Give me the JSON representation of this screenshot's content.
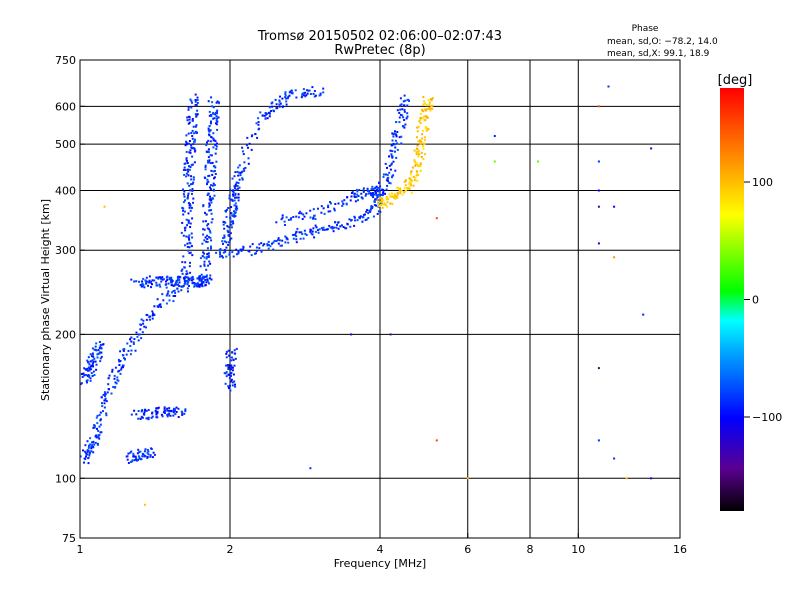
{
  "header": {
    "title_line1": "Tromsø 20150502 02:06:00–02:07:43",
    "title_line2": "RwPretec (8p)"
  },
  "phase_box": {
    "title": "Phase",
    "line_o": "mean, sd,O: −78.2, 14.0",
    "line_x": "mean, sd,X:  99.1, 18.9"
  },
  "colorbar": {
    "unit": "[deg]",
    "ticks": [
      "100",
      "0",
      "−100"
    ],
    "tick_values": [
      100,
      0,
      -100
    ],
    "range": [
      -180,
      180
    ]
  },
  "chart_data": {
    "type": "scatter",
    "title": "Tromsø 20150502 02:06:00–02:07:43",
    "subtitle": "RwPretec (8p)",
    "xlabel": "Frequency [MHz]",
    "ylabel": "Stationary phase Virtual Height [km]",
    "x_scale": "log",
    "y_scale": "log",
    "xlim": [
      1,
      16
    ],
    "ylim": [
      75,
      750
    ],
    "x_ticks": [
      1,
      2,
      4,
      6,
      8,
      10,
      16
    ],
    "x_tick_labels": [
      "1",
      "2",
      "4",
      "6",
      "8",
      "10",
      "16"
    ],
    "x_grid": [
      2,
      4,
      6,
      8,
      10
    ],
    "y_ticks": [
      75,
      100,
      200,
      300,
      400,
      500,
      600,
      750
    ],
    "y_tick_labels": [
      "75",
      "100",
      "200",
      "300",
      "400",
      "500",
      "600",
      "750"
    ],
    "y_grid": [
      100,
      200,
      300,
      400,
      500,
      600
    ],
    "grid": true,
    "color_encoding": "phase [deg]",
    "traces": [
      {
        "phase": -85,
        "points": [
          [
            1.3,
            255
          ],
          [
            1.4,
            258
          ],
          [
            1.5,
            258
          ],
          [
            1.6,
            258
          ],
          [
            1.7,
            258
          ],
          [
            1.75,
            258
          ],
          [
            1.8,
            258
          ]
        ]
      },
      {
        "phase": -85,
        "points": [
          [
            1.62,
            250
          ],
          [
            1.64,
            300
          ],
          [
            1.64,
            350
          ],
          [
            1.65,
            400
          ],
          [
            1.66,
            450
          ],
          [
            1.67,
            500
          ],
          [
            1.68,
            560
          ],
          [
            1.69,
            630
          ]
        ]
      },
      {
        "phase": -85,
        "points": [
          [
            1.78,
            260
          ],
          [
            1.8,
            300
          ],
          [
            1.8,
            350
          ],
          [
            1.82,
            400
          ],
          [
            1.83,
            450
          ],
          [
            1.84,
            500
          ],
          [
            1.85,
            560
          ],
          [
            1.86,
            620
          ]
        ]
      },
      {
        "phase": -85,
        "points": [
          [
            1.95,
            300
          ],
          [
            1.98,
            340
          ],
          [
            2.02,
            370
          ],
          [
            2.05,
            400
          ],
          [
            2.1,
            440
          ],
          [
            2.3,
            570
          ],
          [
            2.5,
            610
          ],
          [
            2.7,
            640
          ],
          [
            3.1,
            645
          ]
        ]
      },
      {
        "phase": -85,
        "points": [
          [
            1.9,
            295
          ],
          [
            2.2,
            300
          ],
          [
            2.5,
            310
          ],
          [
            2.8,
            325
          ],
          [
            3.2,
            335
          ],
          [
            3.6,
            345
          ],
          [
            3.9,
            365
          ],
          [
            4.0,
            395
          ]
        ]
      },
      {
        "phase": -85,
        "points": [
          [
            2.5,
            345
          ],
          [
            3.0,
            360
          ],
          [
            3.5,
            385
          ],
          [
            3.8,
            400
          ],
          [
            4.0,
            395
          ]
        ]
      },
      {
        "phase": -85,
        "points": [
          [
            4.0,
            395
          ],
          [
            4.15,
            430
          ],
          [
            4.3,
            500
          ],
          [
            4.4,
            560
          ],
          [
            4.5,
            630
          ]
        ]
      },
      {
        "phase": -85,
        "points": [
          [
            1.02,
            110
          ],
          [
            1.05,
            115
          ],
          [
            1.08,
            125
          ],
          [
            1.12,
            145
          ],
          [
            1.18,
            165
          ],
          [
            1.25,
            185
          ],
          [
            1.35,
            210
          ],
          [
            1.5,
            240
          ],
          [
            1.6,
            260
          ]
        ]
      },
      {
        "phase": -85,
        "points": [
          [
            1.02,
            160
          ],
          [
            1.05,
            170
          ],
          [
            1.08,
            180
          ],
          [
            1.1,
            190
          ]
        ]
      },
      {
        "phase": -90,
        "points": [
          [
            1.3,
            135
          ],
          [
            1.4,
            137
          ],
          [
            1.5,
            138
          ],
          [
            1.6,
            137
          ]
        ]
      },
      {
        "phase": -85,
        "points": [
          [
            1.25,
            110
          ],
          [
            1.32,
            112
          ],
          [
            1.4,
            113
          ]
        ]
      },
      {
        "phase": -90,
        "points": [
          [
            2.0,
            155
          ],
          [
            2.0,
            170
          ],
          [
            2.02,
            185
          ]
        ]
      },
      {
        "phase": 95,
        "points": [
          [
            4.0,
            375
          ],
          [
            4.2,
            385
          ],
          [
            4.5,
            400
          ],
          [
            4.7,
            430
          ],
          [
            4.8,
            470
          ],
          [
            4.85,
            520
          ],
          [
            4.95,
            580
          ],
          [
            5.0,
            620
          ]
        ]
      }
    ],
    "scatter_points": [
      {
        "x": 1.12,
        "y": 370,
        "phase": 100
      },
      {
        "x": 1.35,
        "y": 88,
        "phase": 100
      },
      {
        "x": 2.9,
        "y": 105,
        "phase": -85
      },
      {
        "x": 3.5,
        "y": 200,
        "phase": -120
      },
      {
        "x": 4.2,
        "y": 200,
        "phase": -140
      },
      {
        "x": 5.2,
        "y": 120,
        "phase": 150
      },
      {
        "x": 5.2,
        "y": 350,
        "phase": 150
      },
      {
        "x": 6.0,
        "y": 100,
        "phase": 100
      },
      {
        "x": 6.8,
        "y": 460,
        "phase": 30
      },
      {
        "x": 6.8,
        "y": 520,
        "phase": -90
      },
      {
        "x": 8.3,
        "y": 460,
        "phase": 30
      },
      {
        "x": 11.0,
        "y": 600,
        "phase": 150
      },
      {
        "x": 11.0,
        "y": 460,
        "phase": -85
      },
      {
        "x": 11.0,
        "y": 400,
        "phase": -100
      },
      {
        "x": 11.0,
        "y": 370,
        "phase": -130
      },
      {
        "x": 11.0,
        "y": 310,
        "phase": -100
      },
      {
        "x": 11.0,
        "y": 170,
        "phase": -150
      },
      {
        "x": 11.0,
        "y": 120,
        "phase": -85
      },
      {
        "x": 11.5,
        "y": 660,
        "phase": -85
      },
      {
        "x": 11.8,
        "y": 370,
        "phase": -100
      },
      {
        "x": 11.8,
        "y": 290,
        "phase": 120
      },
      {
        "x": 11.8,
        "y": 110,
        "phase": -85
      },
      {
        "x": 12.5,
        "y": 100,
        "phase": 100
      },
      {
        "x": 13.5,
        "y": 220,
        "phase": -90
      },
      {
        "x": 14.0,
        "y": 490,
        "phase": -120
      },
      {
        "x": 14.0,
        "y": 100,
        "phase": -120
      }
    ]
  }
}
